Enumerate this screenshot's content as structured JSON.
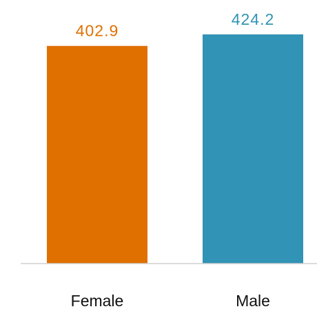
{
  "chart_data": {
    "type": "bar",
    "categories": [
      "Female",
      "Male"
    ],
    "values": [
      402.9,
      424.2
    ],
    "value_labels": [
      "402.9",
      "424.2"
    ],
    "colors": [
      "#E07000",
      "#3193B5"
    ],
    "title": "",
    "xlabel": "",
    "ylabel": "",
    "grid": false,
    "legend": "none"
  }
}
